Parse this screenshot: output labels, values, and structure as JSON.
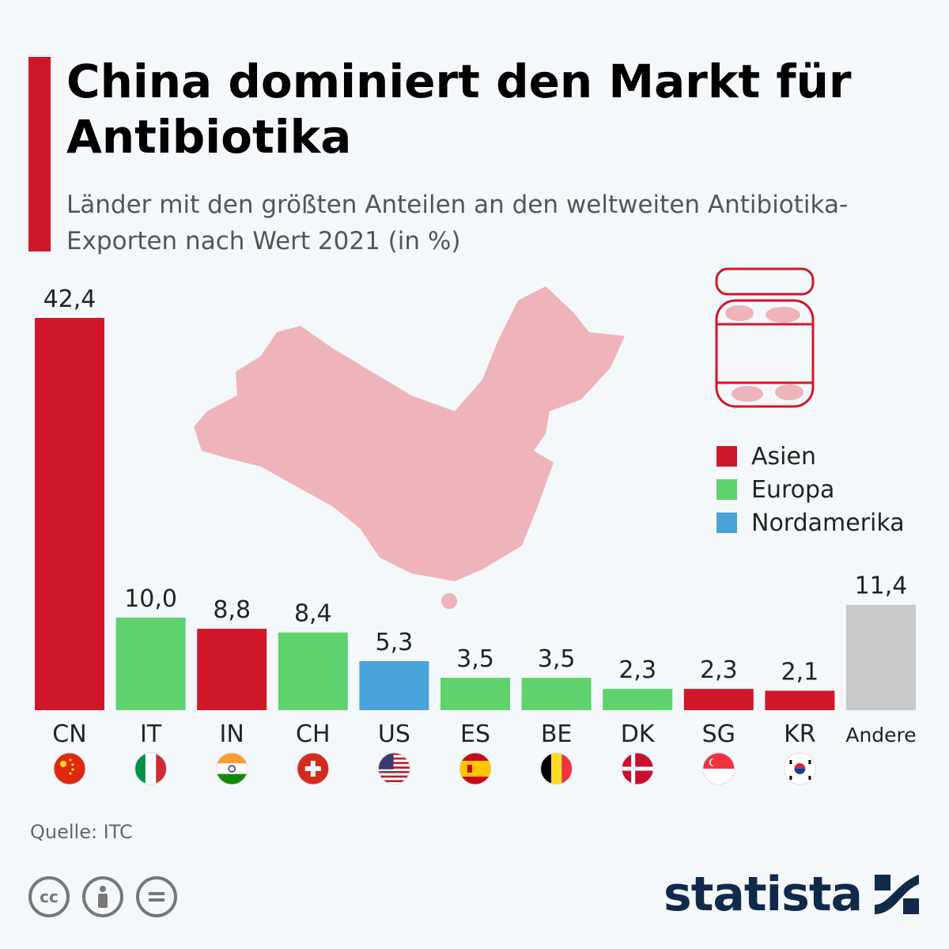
{
  "header": {
    "title": "China dominiert den Markt für Antibiotika",
    "subtitle": "Länder mit den größten Anteilen an den weltweiten Antibiotika-Exporten nach Wert 2021 (in %)",
    "accent_color": "#d0172a"
  },
  "colors": {
    "asia": "#d0172a",
    "europe": "#5fd26d",
    "north_america": "#4aa3d8",
    "other": "#c9c9c9",
    "map": "#efb3ba"
  },
  "legend": {
    "placement": "right",
    "items": [
      {
        "label": "Asien",
        "color": "#d0172a"
      },
      {
        "label": "Europa",
        "color": "#5fd26d"
      },
      {
        "label": "Nordamerika",
        "color": "#4aa3d8"
      }
    ]
  },
  "chart_data": {
    "type": "bar",
    "categories": [
      "CN",
      "IT",
      "IN",
      "CH",
      "US",
      "ES",
      "BE",
      "DK",
      "SG",
      "KR",
      "Andere"
    ],
    "values": [
      42.4,
      10.0,
      8.8,
      8.4,
      5.3,
      3.5,
      3.5,
      2.3,
      2.3,
      2.1,
      11.4
    ],
    "value_labels": [
      "42,4",
      "10,0",
      "8,8",
      "8,4",
      "5,3",
      "3,5",
      "3,5",
      "2,3",
      "2,3",
      "2,1",
      "11,4"
    ],
    "regions": [
      "asia",
      "europe",
      "asia",
      "europe",
      "north_america",
      "europe",
      "europe",
      "europe",
      "asia",
      "asia",
      "other"
    ],
    "flags": [
      "china-flag-icon",
      "italy-flag-icon",
      "india-flag-icon",
      "switzerland-flag-icon",
      "usa-flag-icon",
      "spain-flag-icon",
      "belgium-flag-icon",
      "denmark-flag-icon",
      "singapore-flag-icon",
      "south-korea-flag-icon",
      ""
    ],
    "ylim": [
      0,
      42.4
    ],
    "grid": false
  },
  "footer": {
    "source": "Quelle: ITC",
    "brand": "statista",
    "license_icons": [
      "cc-icon",
      "attribution-icon",
      "no-derivatives-icon"
    ]
  }
}
